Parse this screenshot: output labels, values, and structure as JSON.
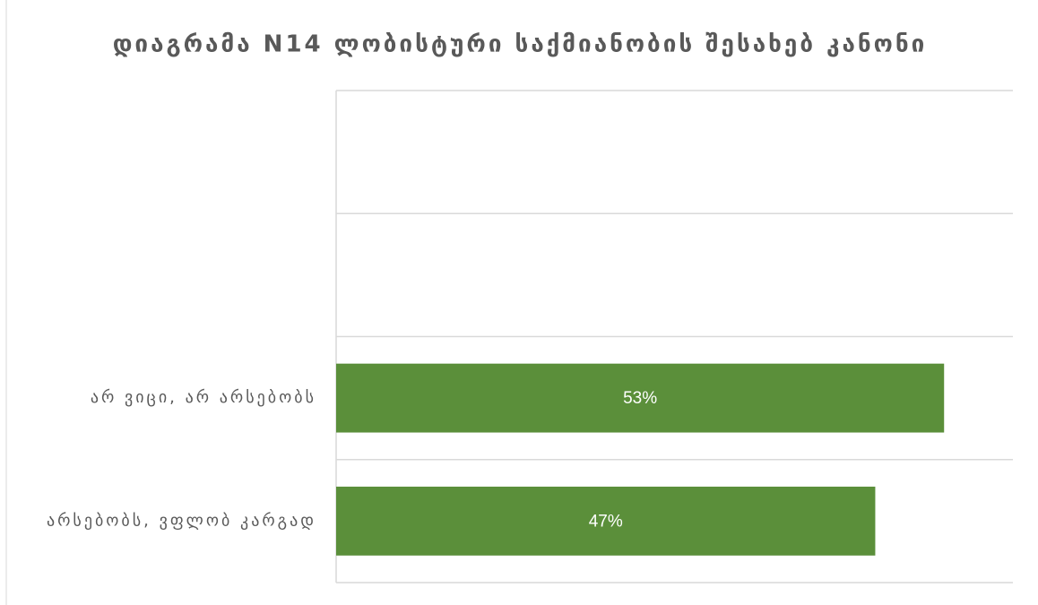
{
  "chart_data": {
    "type": "bar",
    "orientation": "horizontal",
    "title": "დიაგრამა N14 ლობისტური საქმიანობის შესახებ კანონი",
    "categories": [
      null,
      null,
      "არ ვიცი, არ არსებობს",
      "არსებობს, ვფლობ კარგად"
    ],
    "values": [
      null,
      null,
      53,
      47
    ],
    "value_labels": [
      null,
      null,
      "53%",
      "47%"
    ],
    "color": "#5b8f3a",
    "xlim": [
      0,
      59
    ]
  }
}
